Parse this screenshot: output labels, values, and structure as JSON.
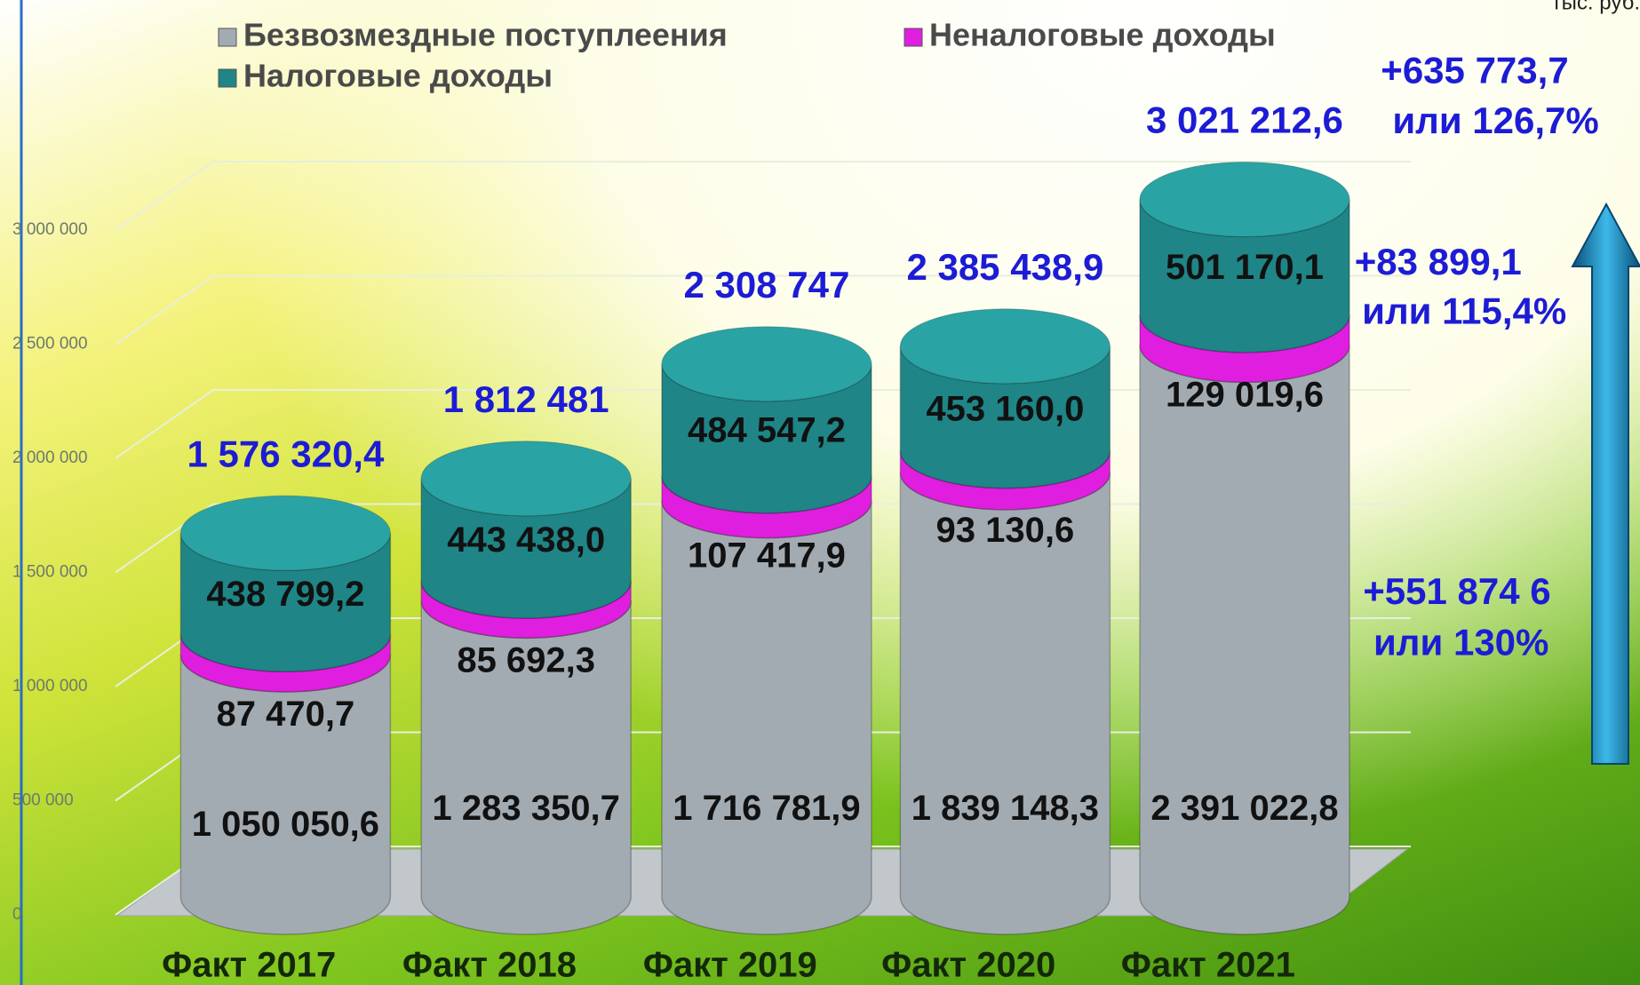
{
  "chart_data": {
    "type": "stacked-cylinder",
    "unit": "тыс. руб.",
    "categories": [
      "Факт 2017",
      "Факт 2018",
      "Факт 2019",
      "Факт 2020",
      "Факт 2021"
    ],
    "series": [
      {
        "name": "Безвозмездные поступлеения",
        "color": "#a3abb2",
        "values": [
          1050050.6,
          1283350.7,
          1716781.9,
          1839148.3,
          2391022.8
        ],
        "value_labels": [
          "1 050 050,6",
          "1 283 350,7",
          "1 716 781,9",
          "1 839 148,3",
          "2 391 022,8"
        ]
      },
      {
        "name": "Неналоговые доходы",
        "color": "#e01ee0",
        "values": [
          87470.7,
          85692.3,
          107417.9,
          93130.6,
          129019.6
        ],
        "value_labels": [
          "87 470,7",
          "85 692,3",
          "107 417,9",
          "93 130,6",
          "129 019,6"
        ]
      },
      {
        "name": "Налоговые доходы",
        "color": "#1f8587",
        "values": [
          438799.2,
          443438.0,
          484547.2,
          453160.0,
          501170.1
        ],
        "value_labels": [
          "438 799,2",
          "443 438,0",
          "484 547,2",
          "453 160,0",
          "501 170,1"
        ]
      }
    ],
    "totals": {
      "values": [
        1576320.4,
        1812481,
        2308747,
        2385438.9,
        3021212.6
      ],
      "value_labels": [
        "1 576 320,4",
        "1 812 481",
        "2 308 747",
        "2 385 438,9",
        "3 021 212,6"
      ]
    },
    "ylim": [
      0,
      3000000
    ],
    "yticks": [
      0,
      {
        "value": 500000,
        "label": "500 000"
      },
      {
        "value": 1000000,
        "label": "1 000 000"
      },
      {
        "value": 1500000,
        "label": "1 500 000"
      },
      {
        "value": 2000000,
        "label": "2 000 000"
      },
      {
        "value": 2500000,
        "label": "2 500 000"
      },
      {
        "value": 3000000,
        "label": "3 000 000"
      }
    ],
    "grid": true,
    "annotations": [
      [
        "+635 773,7",
        "или 126,7%"
      ],
      [
        "+83 899,1",
        "или 115,4%"
      ],
      [
        "+551 874 6",
        "или 130%"
      ]
    ]
  }
}
